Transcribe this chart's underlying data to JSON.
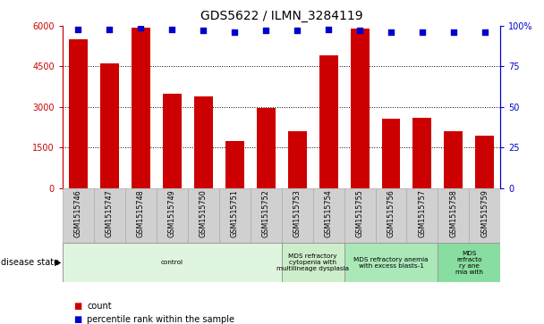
{
  "title": "GDS5622 / ILMN_3284119",
  "samples": [
    "GSM1515746",
    "GSM1515747",
    "GSM1515748",
    "GSM1515749",
    "GSM1515750",
    "GSM1515751",
    "GSM1515752",
    "GSM1515753",
    "GSM1515754",
    "GSM1515755",
    "GSM1515756",
    "GSM1515757",
    "GSM1515758",
    "GSM1515759"
  ],
  "counts": [
    5500,
    4600,
    5950,
    3500,
    3400,
    1750,
    2950,
    2100,
    4900,
    5900,
    2550,
    2600,
    2100,
    1950
  ],
  "percentiles": [
    98,
    98,
    99,
    98,
    97,
    96,
    97,
    97,
    98,
    97,
    96,
    96,
    96,
    96
  ],
  "ylim_left": [
    0,
    6000
  ],
  "ylim_right": [
    0,
    100
  ],
  "yticks_left": [
    0,
    1500,
    3000,
    4500,
    6000
  ],
  "yticks_right": [
    0,
    25,
    50,
    75,
    100
  ],
  "bar_color": "#cc0000",
  "dot_color": "#0000cc",
  "bg_color": "#ffffff",
  "disease_groups": [
    {
      "label": "control",
      "start": 0,
      "end": 7,
      "color": "#dff5df"
    },
    {
      "label": "MDS refractory\ncytopenia with\nmultilineage dysplasia",
      "start": 7,
      "end": 9,
      "color": "#cceeca"
    },
    {
      "label": "MDS refractory anemia\nwith excess blasts-1",
      "start": 9,
      "end": 12,
      "color": "#aae8b8"
    },
    {
      "label": "MDS\nrefracto\nry ane\nmia with",
      "start": 12,
      "end": 14,
      "color": "#88dda0"
    }
  ],
  "disease_state_label": "disease state",
  "legend_count_label": "count",
  "legend_percentile_label": "percentile rank within the sample",
  "tick_bg_color": "#d0d0d0"
}
